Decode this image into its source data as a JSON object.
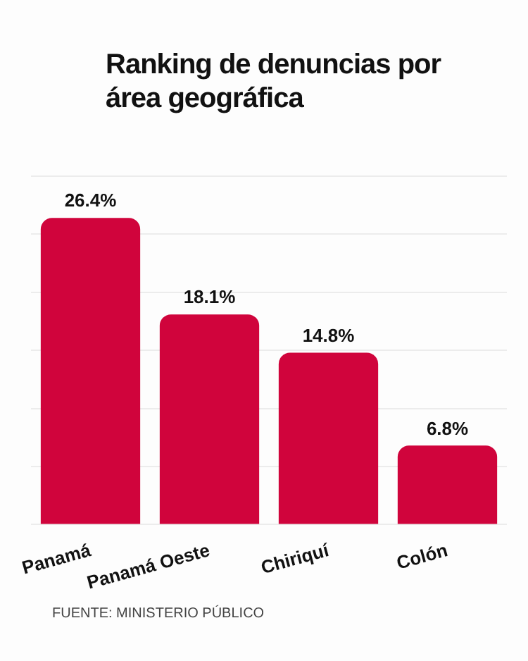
{
  "chart_data": {
    "type": "bar",
    "title": "Ranking de denuncias por área geográfica",
    "categories": [
      "Panamá",
      "Panamá Oeste",
      "Chiriquí",
      "Colón"
    ],
    "values": [
      26.4,
      18.1,
      14.8,
      6.8
    ],
    "color": "#d0043c",
    "value_labels": [
      "26.4%",
      "18.1%",
      "14.8%",
      "6.8%"
    ],
    "ylim": [
      0,
      30
    ],
    "yticks": [
      {
        "value": 0,
        "label": null
      },
      {
        "value": 5,
        "label": null
      },
      {
        "value": 10,
        "label": null
      },
      {
        "value": 15,
        "label": null
      },
      {
        "value": 20,
        "label": null
      },
      {
        "value": 25,
        "label": null
      },
      {
        "value": 30,
        "label": null
      }
    ],
    "grid": "y",
    "tick_labels": "x",
    "annotations": [
      "FUENTE: MINISTERIO PÚBLICO"
    ]
  }
}
